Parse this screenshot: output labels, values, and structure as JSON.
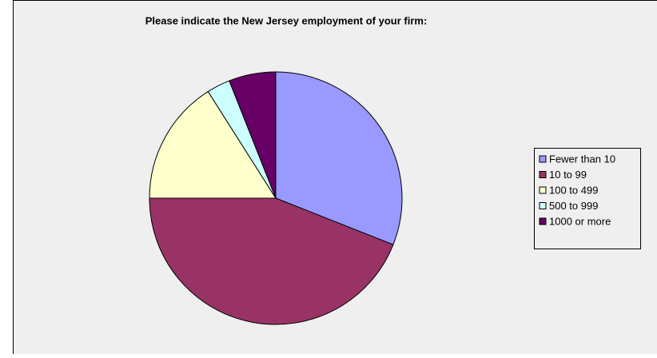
{
  "chart_data": {
    "type": "pie",
    "title": "Please indicate the New Jersey employment of your firm:",
    "categories": [
      "Fewer than 10",
      "10 to 99",
      "100 to 499",
      "500 to 999",
      "1000 or more"
    ],
    "values": [
      31,
      44,
      16,
      3,
      6
    ],
    "colors": [
      "#9999ff",
      "#993366",
      "#ffffcc",
      "#ccffff",
      "#660066"
    ],
    "legend": "right"
  }
}
